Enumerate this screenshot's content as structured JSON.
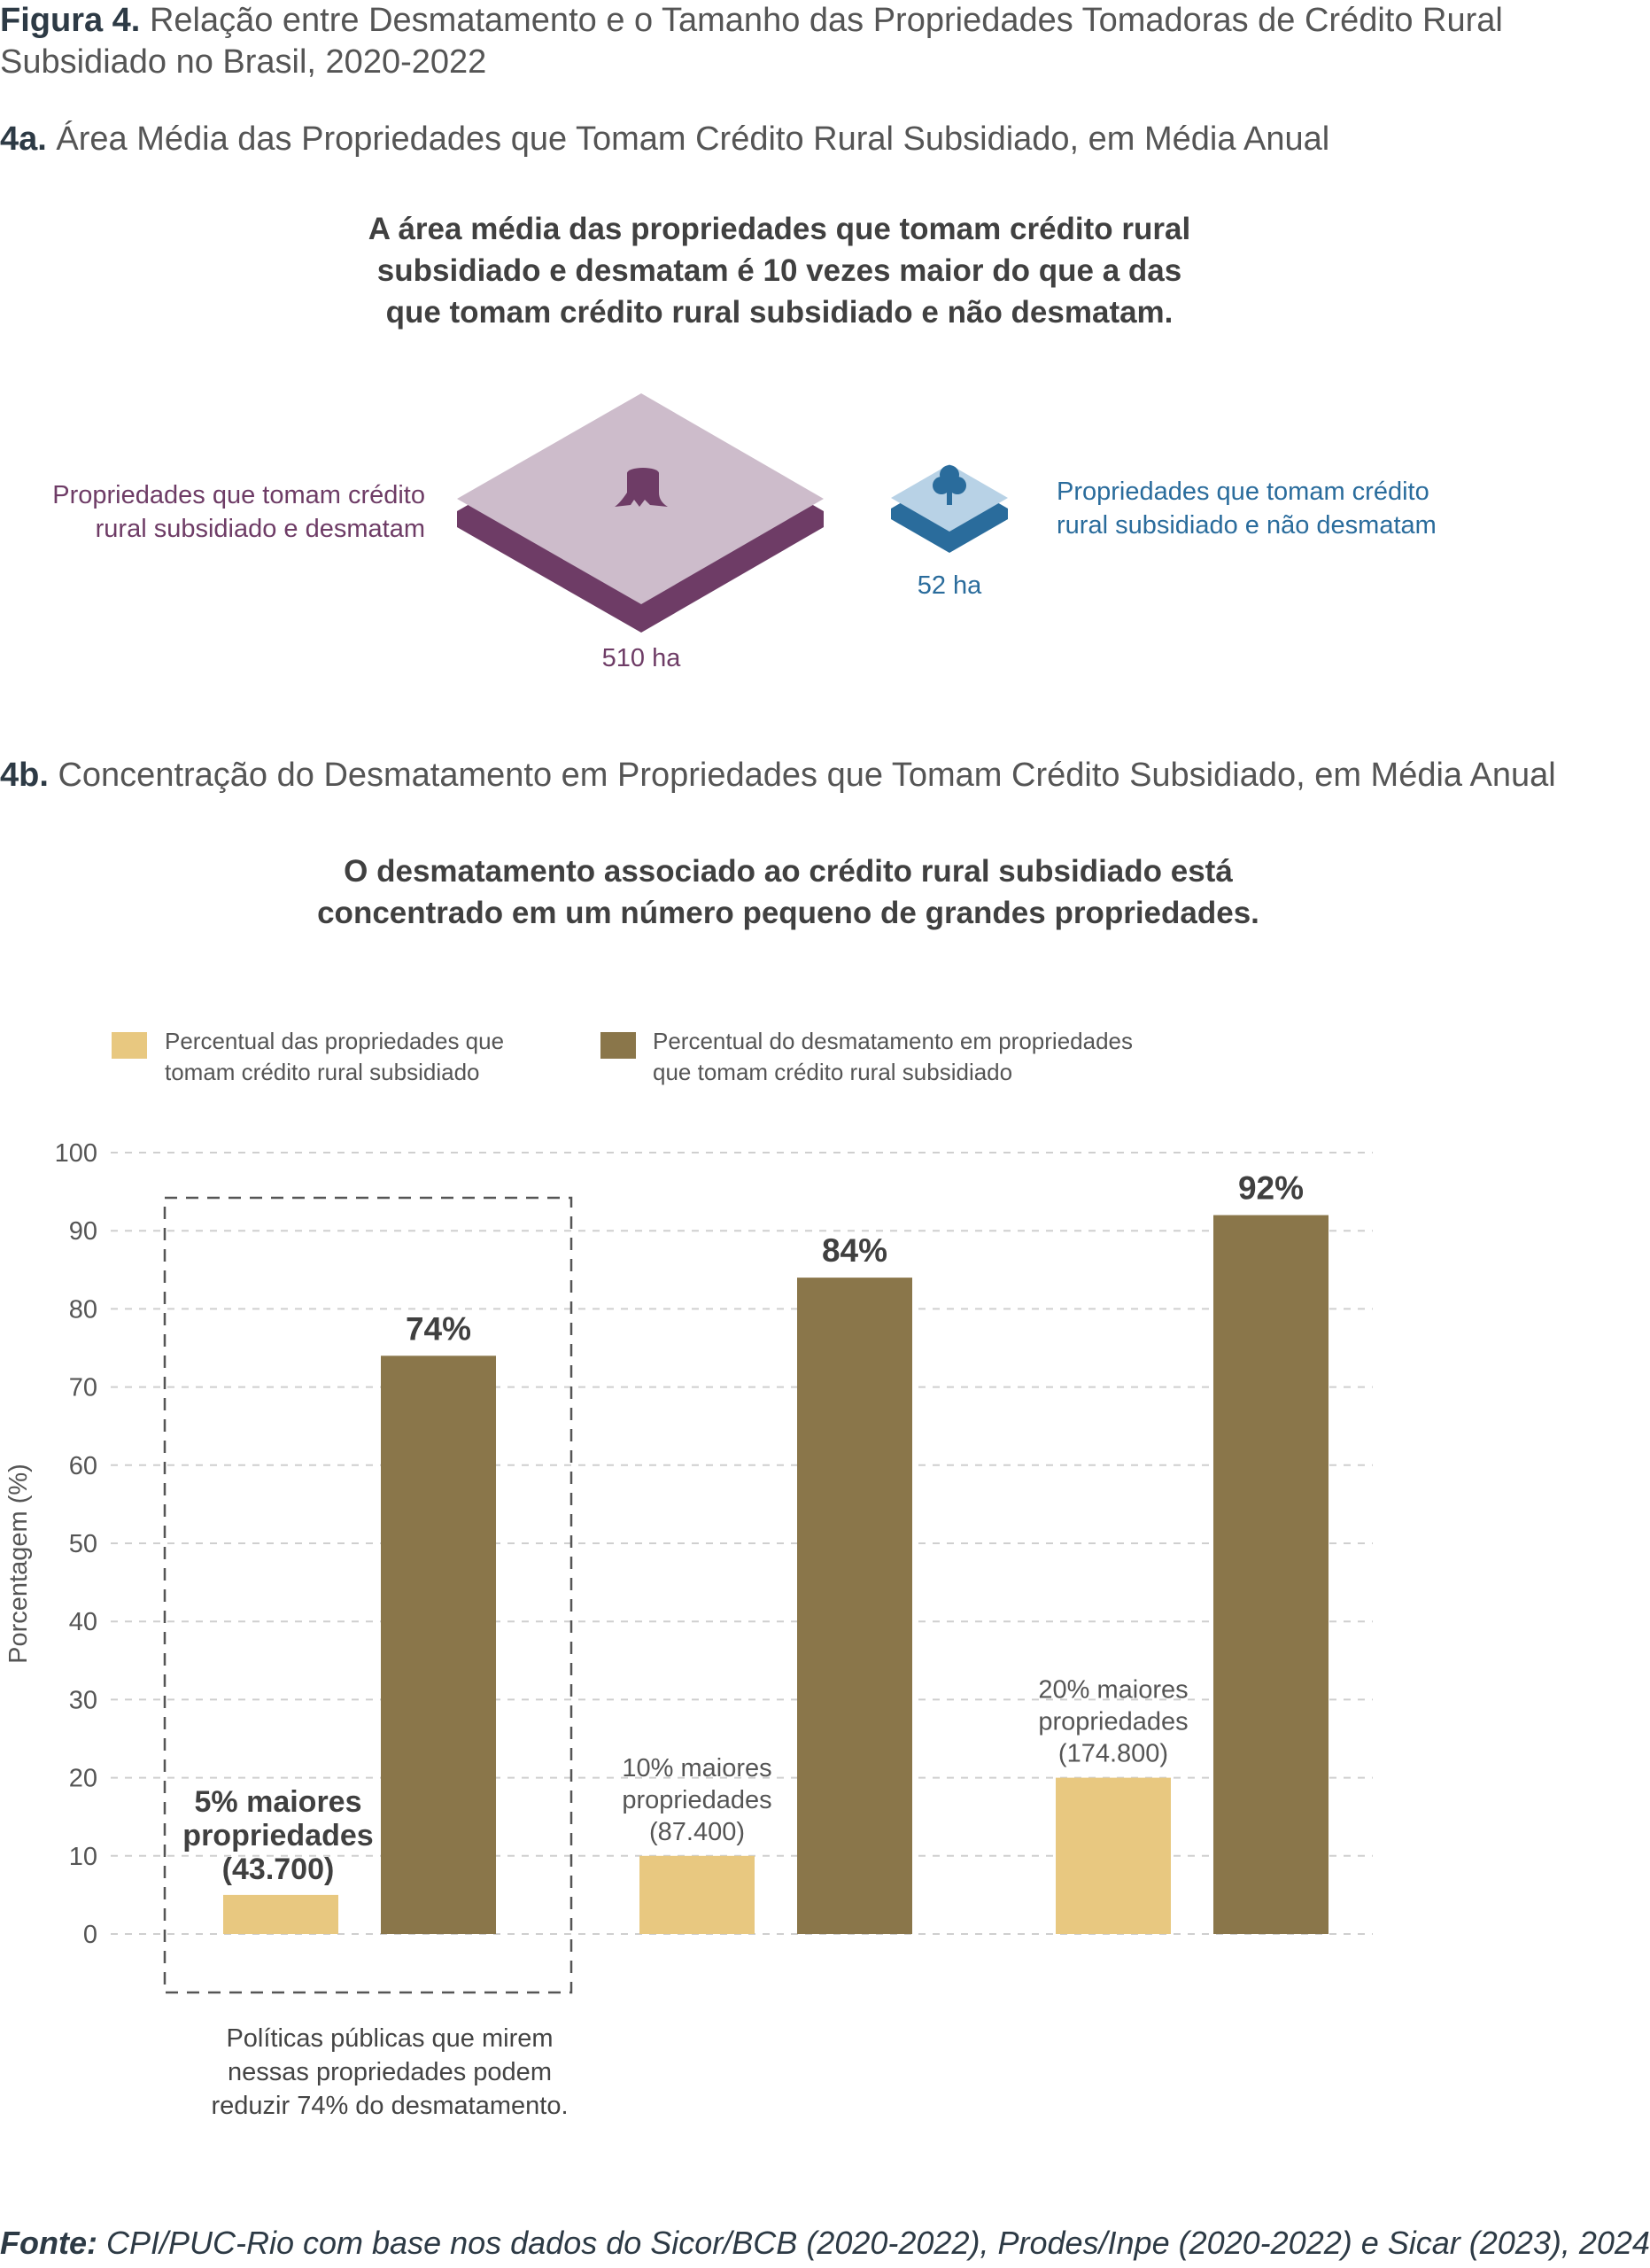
{
  "figure": {
    "label": "Figura 4.",
    "title_line1": "Relação entre Desmatamento e o Tamanho das Propriedades Tomadoras de Crédito Rural",
    "title_line2": "Subsidiado no Brasil, 2020-2022"
  },
  "part_a": {
    "label": "4a.",
    "title": "Área Média das Propriedades que Tomam Crédito Rural Subsidiado, em Média Anual",
    "headline": [
      "A área média das propriedades que tomam crédito rural",
      "subsidiado e desmatam é 10 vezes maior do que a das",
      "que tomam crédito rural subsidiado e não desmatam."
    ],
    "left_group": {
      "label_line1": "Propriedades que tomam crédito",
      "label_line2": "rural subsidiado e desmatam",
      "value": "510 ha",
      "icon": "tree-stump-icon",
      "color": "#6e3c66",
      "fill": "#cdbccb"
    },
    "right_group": {
      "label_line1": "Propriedades que tomam crédito",
      "label_line2": "rural subsidiado e não desmatam",
      "value": "52 ha",
      "icon": "tree-icon",
      "color": "#2a6c9c",
      "fill": "#b8d2e6"
    }
  },
  "part_b": {
    "label": "4b.",
    "title": "Concentração do Desmatamento em Propriedades que Tomam Crédito Subsidiado, em Média Anual",
    "headline": [
      "O desmatamento associado ao crédito rural subsidiado está",
      "concentrado em um número pequeno de grandes propriedades."
    ],
    "note": [
      "Políticas públicas que mirem",
      "nessas propriedades podem",
      "reduzir 74% do desmatamento."
    ]
  },
  "chart_data": {
    "type": "bar",
    "ylabel": "Porcentagem (%)",
    "xlabel": "",
    "ylim": [
      0,
      100
    ],
    "yticks": [
      0,
      10,
      20,
      30,
      40,
      50,
      60,
      70,
      80,
      90,
      100
    ],
    "grid": true,
    "legend_position": "top-left",
    "series": [
      {
        "name": "Percentual das propriedades que tomam crédito rural subsidiado",
        "name_line1": "Percentual das propriedades que",
        "name_line2": "tomam crédito rural subsidiado",
        "color": "#e8c880",
        "values": [
          5,
          10,
          20
        ]
      },
      {
        "name": "Percentual do desmatamento em propriedades que tomam crédito rural subsidiado",
        "name_line1": "Percentual do desmatamento em propriedades",
        "name_line2": "que tomam crédito rural subsidiado",
        "color": "#8a764a",
        "values": [
          74,
          84,
          92
        ]
      }
    ],
    "groups": [
      {
        "label_lines": [
          "5% maiores",
          "propriedades",
          "(43.700)"
        ],
        "bold": true,
        "highlighted": true
      },
      {
        "label_lines": [
          "10% maiores",
          "propriedades",
          "(87.400)"
        ],
        "bold": false
      },
      {
        "label_lines": [
          "20% maiores",
          "propriedades",
          "(174.800)"
        ],
        "bold": false
      }
    ],
    "data_labels": [
      "74%",
      "84%",
      "92%"
    ]
  },
  "source": {
    "label": "Fonte:",
    "text": "CPI/PUC-Rio com base nos dados do Sicor/BCB (2020-2022), Prodes/Inpe (2020-2022) e Sicar (2023), 2024"
  }
}
